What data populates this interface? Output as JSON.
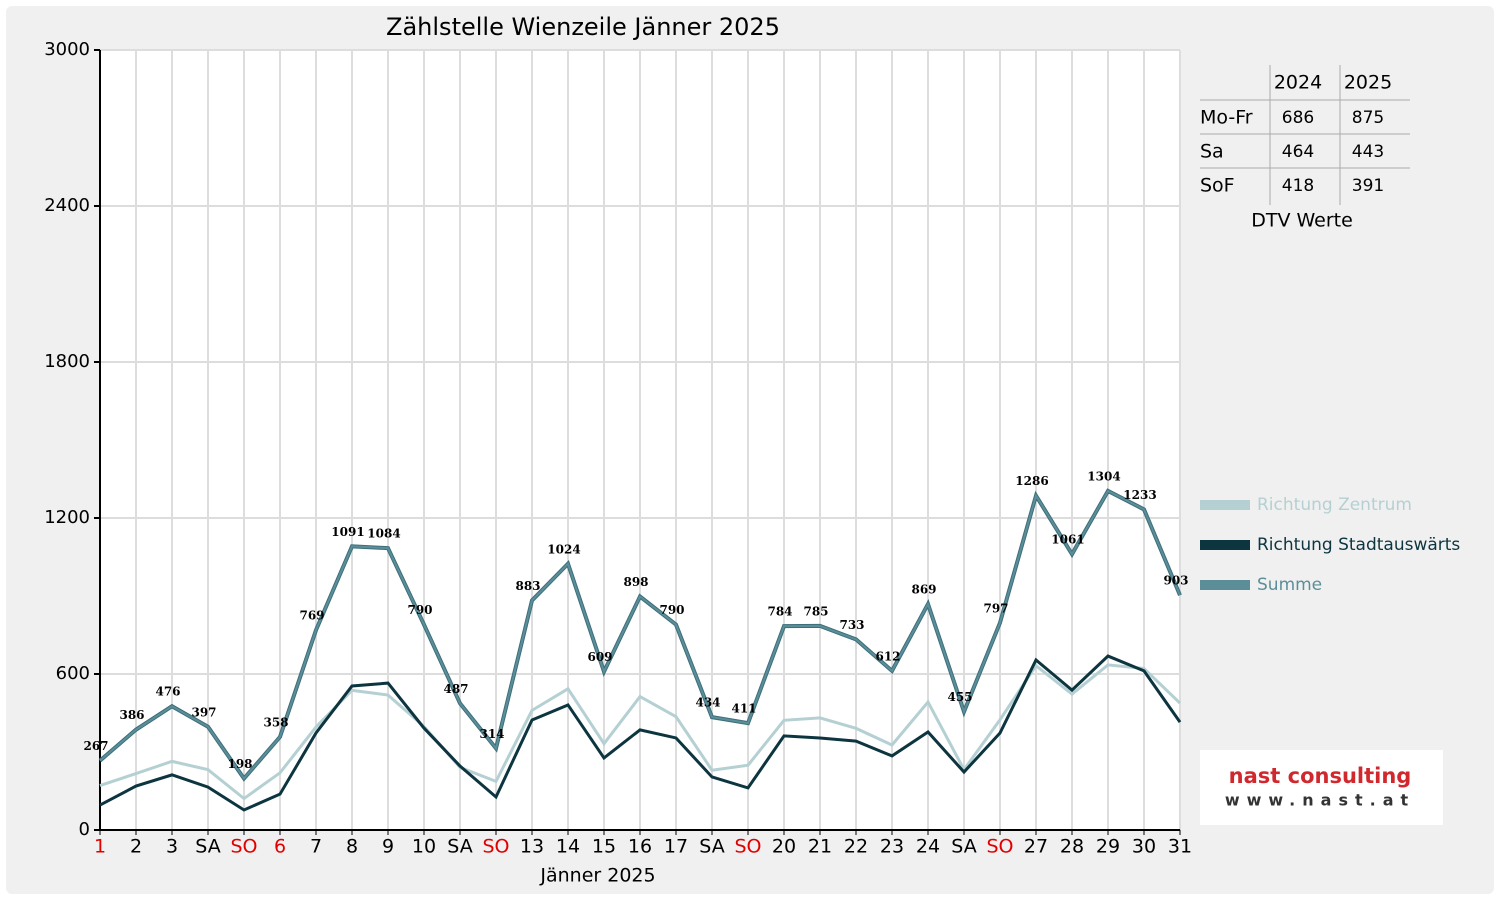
{
  "chart_data": {
    "type": "line",
    "title": "Zählstelle Wienzeile Jänner 2025",
    "x_label": "Jänner 2025",
    "categories": [
      "1",
      "2",
      "3",
      "SA",
      "SO",
      "6",
      "7",
      "8",
      "9",
      "10",
      "SA",
      "SO",
      "13",
      "14",
      "15",
      "16",
      "17",
      "SA",
      "SO",
      "20",
      "21",
      "22",
      "23",
      "24",
      "SA",
      "SO",
      "27",
      "28",
      "29",
      "30",
      "31"
    ],
    "category_colors": [
      "#e00000",
      "#000000",
      "#000000",
      "#000000",
      "#e00000",
      "#e00000",
      "#000000",
      "#000000",
      "#000000",
      "#000000",
      "#000000",
      "#e00000",
      "#000000",
      "#000000",
      "#000000",
      "#000000",
      "#000000",
      "#000000",
      "#e00000",
      "#000000",
      "#000000",
      "#000000",
      "#000000",
      "#000000",
      "#000000",
      "#e00000",
      "#000000",
      "#000000",
      "#000000",
      "#000000",
      "#000000"
    ],
    "series": [
      {
        "name": "Richtung Zentrum",
        "color": "#b5d0d3",
        "values": [
          171,
          217,
          264,
          232,
          121,
          220,
          396,
          537,
          519,
          398,
          241,
          187,
          460,
          543,
          332,
          513,
          436,
          230,
          249,
          422,
          431,
          391,
          327,
          492,
          232,
          424,
          632,
          523,
          635,
          621,
          488
        ]
      },
      {
        "name": "Richtung Stadtauswärts",
        "color": "#0d3540",
        "values": [
          96,
          169,
          212,
          165,
          77,
          138,
          373,
          554,
          565,
          392,
          246,
          127,
          423,
          481,
          277,
          385,
          354,
          204,
          162,
          362,
          354,
          342,
          285,
          377,
          223,
          373,
          654,
          538,
          669,
          612,
          415
        ]
      },
      {
        "name": "Summe",
        "color": "#5b8e99",
        "show_labels": true,
        "values": [
          267,
          386,
          476,
          397,
          198,
          358,
          769,
          1091,
          1084,
          790,
          487,
          314,
          883,
          1024,
          609,
          898,
          790,
          434,
          411,
          784,
          785,
          733,
          612,
          869,
          455,
          797,
          1286,
          1061,
          1304,
          1233,
          903
        ]
      }
    ],
    "ylim": [
      0,
      3000
    ],
    "yticks": [
      0,
      600,
      1200,
      1800,
      2400,
      3000
    ],
    "grid": true
  },
  "table": {
    "header": [
      "2024",
      "2025"
    ],
    "rows": [
      [
        "Mo-Fr",
        "686",
        "875"
      ],
      [
        "Sa",
        "464",
        "443"
      ],
      [
        "SoF",
        "418",
        "391"
      ]
    ],
    "caption": "DTV Werte"
  },
  "logo": {
    "name": "nast consulting",
    "url": "www.nast.at"
  }
}
